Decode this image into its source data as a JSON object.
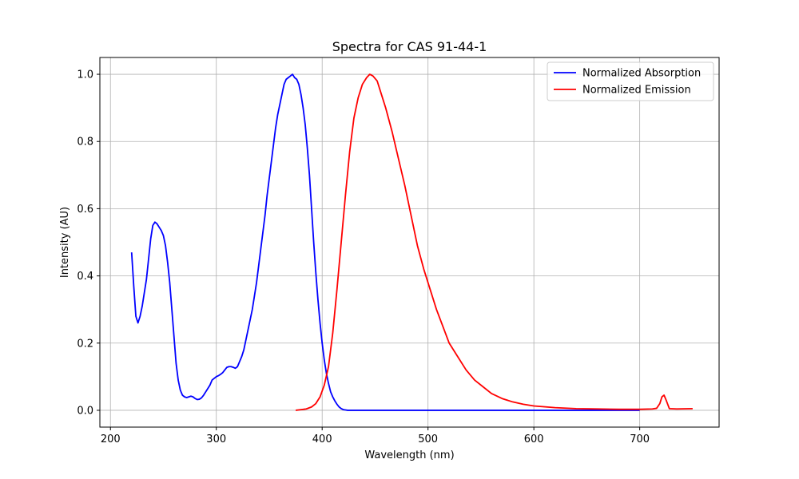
{
  "chart_data": {
    "type": "line",
    "title": "Spectra for CAS 91-44-1",
    "xlabel": "Wavelength (nm)",
    "ylabel": "Intensity (AU)",
    "xlim": [
      190,
      775
    ],
    "ylim": [
      -0.05,
      1.05
    ],
    "xticks": [
      200,
      300,
      400,
      500,
      600,
      700
    ],
    "yticks": [
      0.0,
      0.2,
      0.4,
      0.6,
      0.8,
      1.0
    ],
    "xtick_labels": [
      "200",
      "300",
      "400",
      "500",
      "600",
      "700"
    ],
    "ytick_labels": [
      "0.0",
      "0.2",
      "0.4",
      "0.6",
      "0.8",
      "1.0"
    ],
    "grid": true,
    "legend_position": "top-right",
    "series": [
      {
        "name": "Normalized Absorption",
        "color": "#0000ff",
        "x": [
          220,
          222,
          224,
          226,
          228,
          230,
          232,
          234,
          236,
          238,
          240,
          242,
          244,
          246,
          248,
          250,
          252,
          254,
          256,
          258,
          260,
          262,
          264,
          266,
          268,
          270,
          272,
          274,
          276,
          278,
          280,
          282,
          284,
          286,
          288,
          290,
          292,
          294,
          296,
          298,
          300,
          302,
          304,
          306,
          308,
          310,
          312,
          314,
          316,
          318,
          320,
          322,
          324,
          326,
          328,
          330,
          332,
          334,
          336,
          338,
          340,
          342,
          344,
          346,
          348,
          350,
          352,
          354,
          356,
          358,
          360,
          362,
          364,
          366,
          368,
          370,
          372,
          374,
          376,
          378,
          380,
          382,
          384,
          386,
          388,
          390,
          392,
          394,
          396,
          398,
          400,
          402,
          404,
          406,
          408,
          410,
          412,
          414,
          416,
          418,
          420,
          422,
          424,
          430,
          440,
          460,
          500,
          550,
          600,
          650,
          700
        ],
        "y": [
          0.47,
          0.37,
          0.28,
          0.26,
          0.28,
          0.31,
          0.35,
          0.39,
          0.45,
          0.51,
          0.55,
          0.56,
          0.555,
          0.545,
          0.535,
          0.52,
          0.49,
          0.44,
          0.38,
          0.3,
          0.22,
          0.14,
          0.09,
          0.06,
          0.045,
          0.04,
          0.038,
          0.04,
          0.042,
          0.04,
          0.035,
          0.032,
          0.033,
          0.037,
          0.045,
          0.055,
          0.065,
          0.075,
          0.09,
          0.095,
          0.1,
          0.103,
          0.107,
          0.112,
          0.12,
          0.128,
          0.13,
          0.13,
          0.128,
          0.125,
          0.13,
          0.145,
          0.16,
          0.18,
          0.21,
          0.24,
          0.27,
          0.3,
          0.34,
          0.38,
          0.43,
          0.48,
          0.53,
          0.58,
          0.64,
          0.69,
          0.74,
          0.79,
          0.84,
          0.88,
          0.91,
          0.94,
          0.97,
          0.985,
          0.99,
          0.995,
          1.0,
          0.99,
          0.985,
          0.97,
          0.94,
          0.9,
          0.85,
          0.78,
          0.7,
          0.6,
          0.5,
          0.41,
          0.33,
          0.26,
          0.2,
          0.15,
          0.11,
          0.08,
          0.055,
          0.04,
          0.028,
          0.018,
          0.01,
          0.005,
          0.002,
          0.001,
          0.0,
          0.0,
          0.0,
          0.0,
          0.0,
          0.0,
          0.0,
          0.0,
          0.0
        ]
      },
      {
        "name": "Normalized Emission",
        "color": "#ff0000",
        "x": [
          375,
          380,
          385,
          390,
          394,
          398,
          402,
          406,
          410,
          414,
          418,
          422,
          426,
          430,
          434,
          438,
          442,
          445,
          448,
          452,
          456,
          460,
          466,
          472,
          478,
          484,
          490,
          496,
          502,
          508,
          514,
          520,
          528,
          536,
          544,
          552,
          560,
          570,
          580,
          590,
          600,
          620,
          640,
          660,
          680,
          700,
          712,
          716,
          719,
          721,
          723,
          725,
          728,
          735,
          750
        ],
        "y": [
          0.0,
          0.002,
          0.004,
          0.01,
          0.02,
          0.04,
          0.075,
          0.13,
          0.23,
          0.36,
          0.5,
          0.64,
          0.77,
          0.87,
          0.93,
          0.97,
          0.99,
          1.0,
          0.995,
          0.98,
          0.94,
          0.9,
          0.83,
          0.75,
          0.67,
          0.58,
          0.49,
          0.42,
          0.36,
          0.3,
          0.25,
          0.2,
          0.16,
          0.12,
          0.09,
          0.07,
          0.05,
          0.035,
          0.025,
          0.018,
          0.013,
          0.008,
          0.005,
          0.004,
          0.003,
          0.003,
          0.004,
          0.006,
          0.02,
          0.04,
          0.045,
          0.03,
          0.005,
          0.004,
          0.005
        ]
      }
    ]
  }
}
